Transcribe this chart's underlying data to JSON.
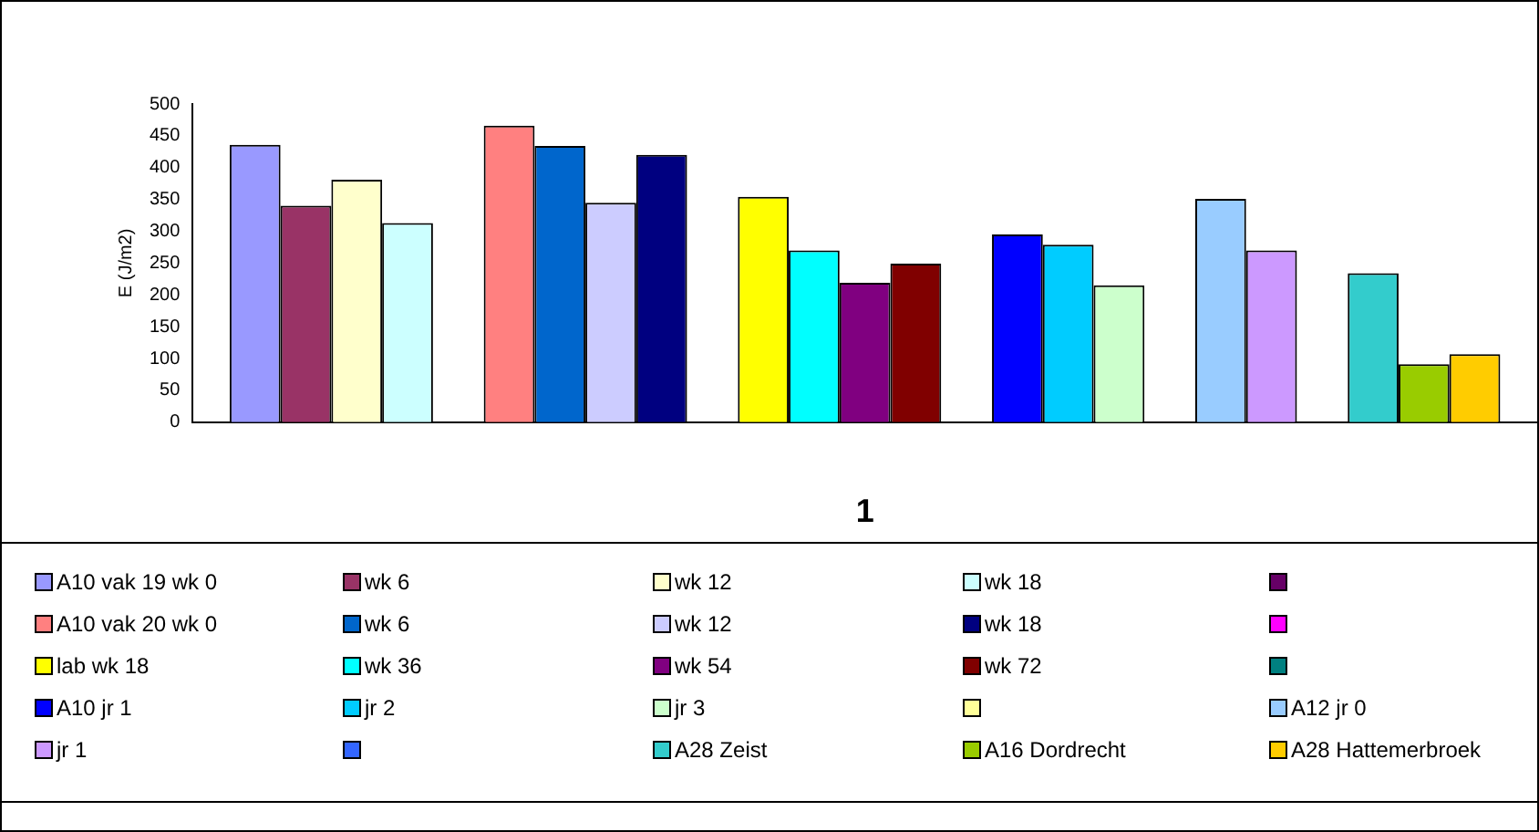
{
  "chart_data": {
    "type": "bar",
    "ylabel": "E (J/m2)",
    "categories": [
      "1"
    ],
    "ylim": [
      0,
      500
    ],
    "yticks": [
      0,
      50,
      100,
      150,
      200,
      250,
      300,
      350,
      400,
      450,
      500
    ],
    "grid": false,
    "legend": "bottom",
    "series": [
      {
        "name": "A10 vak 19 wk 0",
        "color": "#9999ff",
        "values": [
          436
        ]
      },
      {
        "name": "wk 6",
        "color": "#993366",
        "values": [
          340
        ]
      },
      {
        "name": "wk 12",
        "color": "#ffffcc",
        "values": [
          381
        ]
      },
      {
        "name": "wk 18",
        "color": "#ccffff",
        "values": [
          313
        ]
      },
      {
        "color": "#660066",
        "values": [
          null
        ]
      },
      {
        "name": "A10 vak 20 wk 0",
        "color": "#ff8080",
        "values": [
          466
        ]
      },
      {
        "name": "wk 6",
        "color": "#0066cc",
        "values": [
          434
        ]
      },
      {
        "name": "wk 12",
        "color": "#ccccff",
        "values": [
          345
        ]
      },
      {
        "name": "wk 18",
        "color": "#000080",
        "values": [
          420
        ]
      },
      {
        "color": "#ff00ff",
        "values": [
          null
        ]
      },
      {
        "name": "lab wk 18",
        "color": "#ffff00",
        "values": [
          354
        ]
      },
      {
        "name": "wk 36",
        "color": "#00ffff",
        "values": [
          270
        ]
      },
      {
        "name": "wk 54",
        "color": "#800080",
        "values": [
          219
        ]
      },
      {
        "name": "wk 72",
        "color": "#800000",
        "values": [
          249
        ]
      },
      {
        "color": "#008080",
        "values": [
          null
        ]
      },
      {
        "name": "A10 jr 1",
        "color": "#0000ff",
        "values": [
          295
        ]
      },
      {
        "name": "jr 2",
        "color": "#00ccff",
        "values": [
          279
        ]
      },
      {
        "name": "jr 3",
        "color": "#ccffcc",
        "values": [
          215
        ]
      },
      {
        "color": "#ffff99",
        "values": [
          null
        ]
      },
      {
        "name": "A12 jr 0",
        "color": "#99ccff",
        "values": [
          351
        ]
      },
      {
        "name": "jr 1",
        "color": "#cc99ff",
        "values": [
          270
        ]
      },
      {
        "color": "#3366ff",
        "values": [
          null
        ]
      },
      {
        "name": "A28 Zeist",
        "color": "#33cccc",
        "values": [
          234
        ]
      },
      {
        "name": "A16 Dordrecht",
        "color": "#99cc00",
        "values": [
          91
        ]
      },
      {
        "name": "A28 Hattemerbroek",
        "color": "#ffcc00",
        "values": [
          107
        ]
      }
    ]
  }
}
